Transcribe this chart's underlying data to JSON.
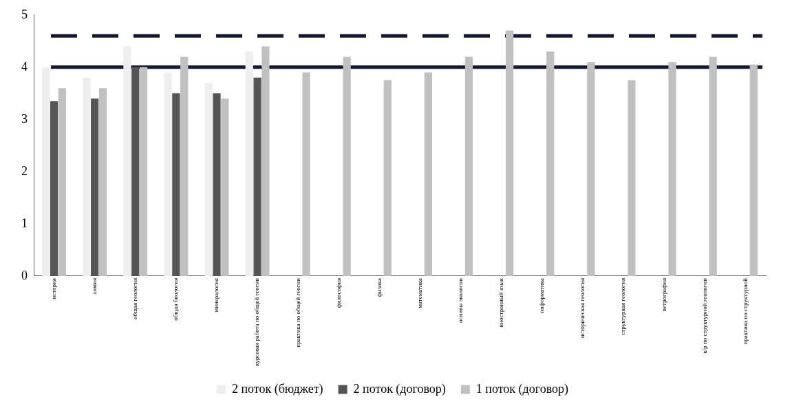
{
  "chart_data": {
    "type": "bar",
    "categories": [
      "история",
      "химия",
      "общая геология",
      "общая биология",
      "минералогия",
      "курсовая работа по общей геогии",
      "практика по общей геогии",
      "философия",
      "физика",
      "математика",
      "основы экологии",
      "иностранный язык",
      "информатика",
      "историческая геология",
      "структурная геология",
      "петрография",
      "к/р по структурной геологии",
      "практика по структурной"
    ],
    "series": [
      {
        "name": "2 поток (бюджет)",
        "color": "#eeeeee",
        "values": [
          4.0,
          3.8,
          4.4,
          3.9,
          3.7,
          4.3,
          null,
          null,
          null,
          null,
          null,
          null,
          null,
          null,
          null,
          null,
          null,
          null
        ]
      },
      {
        "name": "2 поток (договор)",
        "color": "#555555",
        "values": [
          3.35,
          3.4,
          4.0,
          3.5,
          3.5,
          3.8,
          null,
          null,
          null,
          null,
          null,
          null,
          null,
          null,
          null,
          null,
          null,
          null
        ]
      },
      {
        "name": "1 поток (договор)",
        "color": "#c0c0c0",
        "values": [
          3.6,
          3.6,
          4.0,
          4.2,
          3.4,
          4.4,
          3.9,
          4.2,
          3.75,
          3.9,
          4.2,
          4.7,
          4.3,
          4.1,
          3.75,
          4.1,
          4.2,
          4.05
        ]
      }
    ],
    "ylim": [
      0,
      5
    ],
    "yticks": [
      0,
      1,
      2,
      3,
      4,
      5
    ],
    "grid": false,
    "legend": "bottom",
    "ref_lines": [
      {
        "axis": "y",
        "value": 4.0,
        "color": "#141a33",
        "line_style": "solid"
      },
      {
        "axis": "y",
        "value": 4.6,
        "color": "#141a33",
        "line_style": "dashed"
      }
    ]
  }
}
